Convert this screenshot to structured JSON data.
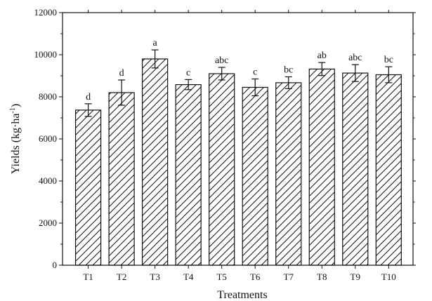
{
  "chart_data": {
    "type": "bar",
    "categories": [
      "T1",
      "T2",
      "T3",
      "T4",
      "T5",
      "T6",
      "T7",
      "T8",
      "T9",
      "T10"
    ],
    "values": [
      7370,
      8200,
      9800,
      8580,
      9100,
      8450,
      8670,
      9320,
      9130,
      9050
    ],
    "errors": [
      300,
      600,
      430,
      240,
      300,
      400,
      280,
      310,
      400,
      380
    ],
    "letters": [
      "d",
      "d",
      "a",
      "c",
      "abc",
      "c",
      "bc",
      "ab",
      "abc",
      "bc"
    ],
    "xlabel": "Treatments",
    "ylabel_base": "Yields (kg·ha",
    "ylabel_sup": "-1",
    "ylabel_close": ")",
    "ylim": [
      0,
      12000
    ],
    "yticks": [
      0,
      2000,
      4000,
      6000,
      8000,
      10000,
      12000
    ],
    "fill": "hatched",
    "bar_color": "#ffffff",
    "stroke_color": "#111111",
    "grid": false,
    "legend": "none"
  }
}
